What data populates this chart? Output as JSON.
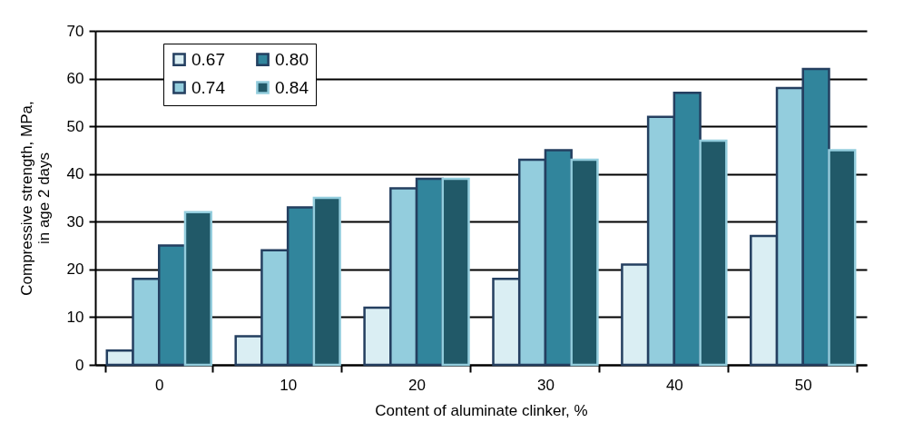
{
  "chart_data": {
    "type": "bar",
    "xlabel": "Content of aluminate clinker, %",
    "ylabel": "Compressive strength, MPa,\nin age 2 days",
    "categories": [
      "0",
      "10",
      "20",
      "30",
      "40",
      "50"
    ],
    "series": [
      {
        "name": "0.67",
        "color": "#daeef3",
        "values": [
          3,
          6,
          12,
          18,
          21,
          27
        ]
      },
      {
        "name": "0.74",
        "color": "#93cddd",
        "values": [
          18,
          24,
          37,
          43,
          52,
          58
        ]
      },
      {
        "name": "0.80",
        "color": "#31859c",
        "values": [
          25,
          33,
          39,
          45,
          57,
          62
        ]
      },
      {
        "name": "0.84",
        "color": "#215968",
        "values": [
          32,
          35,
          39,
          43,
          47,
          45
        ]
      }
    ],
    "ylim": [
      0,
      70
    ],
    "yticks": [
      0,
      10,
      20,
      30,
      40,
      50,
      60,
      70
    ],
    "grid": "y",
    "legend": "top left"
  }
}
